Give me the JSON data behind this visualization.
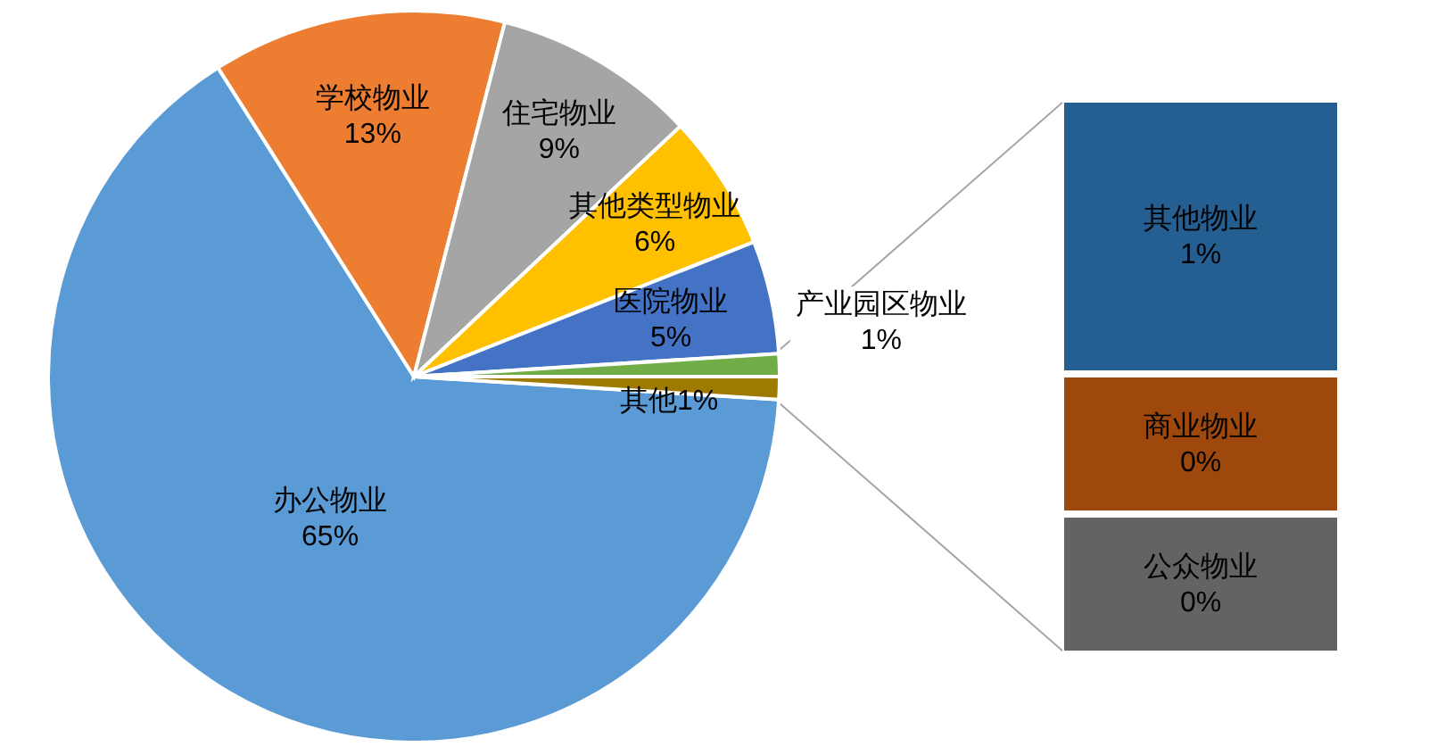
{
  "chart_data": [
    {
      "type": "pie",
      "categories": [
        "办公物业",
        "学校物业",
        "住宅物业",
        "其他类型物业",
        "医院物业",
        "产业园区物业",
        "其他"
      ],
      "values": [
        65,
        13,
        9,
        6,
        5,
        1,
        1
      ],
      "value_labels": [
        "65%",
        "13%",
        "9%",
        "6%",
        "5%",
        "1%",
        "1%"
      ],
      "colors": [
        "#5b9bd5",
        "#ed7d31",
        "#a5a5a5",
        "#ffc000",
        "#4472c4",
        "#70ad47",
        "#9e7a00"
      ]
    },
    {
      "type": "other",
      "categories": [
        "其他物业",
        "商业物业",
        "公众物业"
      ],
      "values": [
        1,
        0,
        0
      ],
      "value_labels": [
        "1%",
        "0%",
        "0%"
      ],
      "colors": [
        "#255e91",
        "#9e480e",
        "#636363"
      ]
    }
  ]
}
